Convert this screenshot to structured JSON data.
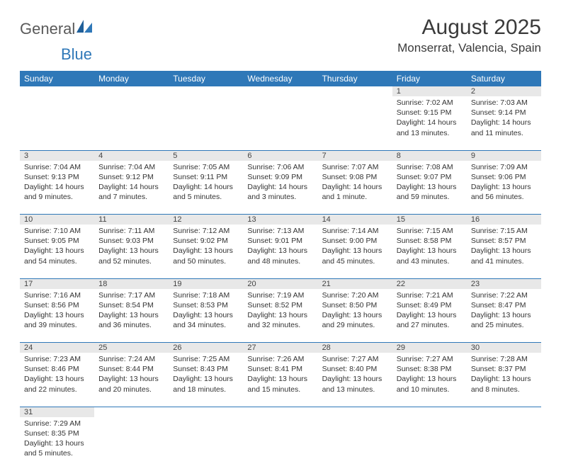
{
  "logo": {
    "part1": "General",
    "part2": "Blue"
  },
  "title": "August 2025",
  "location": "Monserrat, Valencia, Spain",
  "colors": {
    "header_bg": "#2f78b8",
    "header_text": "#ffffff",
    "daynum_bg": "#e8e8e8",
    "border": "#2f78b8"
  },
  "weekdays": [
    "Sunday",
    "Monday",
    "Tuesday",
    "Wednesday",
    "Thursday",
    "Friday",
    "Saturday"
  ],
  "weeks": [
    [
      null,
      null,
      null,
      null,
      null,
      {
        "n": "1",
        "sr": "Sunrise: 7:02 AM",
        "ss": "Sunset: 9:15 PM",
        "dl": "Daylight: 14 hours and 13 minutes."
      },
      {
        "n": "2",
        "sr": "Sunrise: 7:03 AM",
        "ss": "Sunset: 9:14 PM",
        "dl": "Daylight: 14 hours and 11 minutes."
      }
    ],
    [
      {
        "n": "3",
        "sr": "Sunrise: 7:04 AM",
        "ss": "Sunset: 9:13 PM",
        "dl": "Daylight: 14 hours and 9 minutes."
      },
      {
        "n": "4",
        "sr": "Sunrise: 7:04 AM",
        "ss": "Sunset: 9:12 PM",
        "dl": "Daylight: 14 hours and 7 minutes."
      },
      {
        "n": "5",
        "sr": "Sunrise: 7:05 AM",
        "ss": "Sunset: 9:11 PM",
        "dl": "Daylight: 14 hours and 5 minutes."
      },
      {
        "n": "6",
        "sr": "Sunrise: 7:06 AM",
        "ss": "Sunset: 9:09 PM",
        "dl": "Daylight: 14 hours and 3 minutes."
      },
      {
        "n": "7",
        "sr": "Sunrise: 7:07 AM",
        "ss": "Sunset: 9:08 PM",
        "dl": "Daylight: 14 hours and 1 minute."
      },
      {
        "n": "8",
        "sr": "Sunrise: 7:08 AM",
        "ss": "Sunset: 9:07 PM",
        "dl": "Daylight: 13 hours and 59 minutes."
      },
      {
        "n": "9",
        "sr": "Sunrise: 7:09 AM",
        "ss": "Sunset: 9:06 PM",
        "dl": "Daylight: 13 hours and 56 minutes."
      }
    ],
    [
      {
        "n": "10",
        "sr": "Sunrise: 7:10 AM",
        "ss": "Sunset: 9:05 PM",
        "dl": "Daylight: 13 hours and 54 minutes."
      },
      {
        "n": "11",
        "sr": "Sunrise: 7:11 AM",
        "ss": "Sunset: 9:03 PM",
        "dl": "Daylight: 13 hours and 52 minutes."
      },
      {
        "n": "12",
        "sr": "Sunrise: 7:12 AM",
        "ss": "Sunset: 9:02 PM",
        "dl": "Daylight: 13 hours and 50 minutes."
      },
      {
        "n": "13",
        "sr": "Sunrise: 7:13 AM",
        "ss": "Sunset: 9:01 PM",
        "dl": "Daylight: 13 hours and 48 minutes."
      },
      {
        "n": "14",
        "sr": "Sunrise: 7:14 AM",
        "ss": "Sunset: 9:00 PM",
        "dl": "Daylight: 13 hours and 45 minutes."
      },
      {
        "n": "15",
        "sr": "Sunrise: 7:15 AM",
        "ss": "Sunset: 8:58 PM",
        "dl": "Daylight: 13 hours and 43 minutes."
      },
      {
        "n": "16",
        "sr": "Sunrise: 7:15 AM",
        "ss": "Sunset: 8:57 PM",
        "dl": "Daylight: 13 hours and 41 minutes."
      }
    ],
    [
      {
        "n": "17",
        "sr": "Sunrise: 7:16 AM",
        "ss": "Sunset: 8:56 PM",
        "dl": "Daylight: 13 hours and 39 minutes."
      },
      {
        "n": "18",
        "sr": "Sunrise: 7:17 AM",
        "ss": "Sunset: 8:54 PM",
        "dl": "Daylight: 13 hours and 36 minutes."
      },
      {
        "n": "19",
        "sr": "Sunrise: 7:18 AM",
        "ss": "Sunset: 8:53 PM",
        "dl": "Daylight: 13 hours and 34 minutes."
      },
      {
        "n": "20",
        "sr": "Sunrise: 7:19 AM",
        "ss": "Sunset: 8:52 PM",
        "dl": "Daylight: 13 hours and 32 minutes."
      },
      {
        "n": "21",
        "sr": "Sunrise: 7:20 AM",
        "ss": "Sunset: 8:50 PM",
        "dl": "Daylight: 13 hours and 29 minutes."
      },
      {
        "n": "22",
        "sr": "Sunrise: 7:21 AM",
        "ss": "Sunset: 8:49 PM",
        "dl": "Daylight: 13 hours and 27 minutes."
      },
      {
        "n": "23",
        "sr": "Sunrise: 7:22 AM",
        "ss": "Sunset: 8:47 PM",
        "dl": "Daylight: 13 hours and 25 minutes."
      }
    ],
    [
      {
        "n": "24",
        "sr": "Sunrise: 7:23 AM",
        "ss": "Sunset: 8:46 PM",
        "dl": "Daylight: 13 hours and 22 minutes."
      },
      {
        "n": "25",
        "sr": "Sunrise: 7:24 AM",
        "ss": "Sunset: 8:44 PM",
        "dl": "Daylight: 13 hours and 20 minutes."
      },
      {
        "n": "26",
        "sr": "Sunrise: 7:25 AM",
        "ss": "Sunset: 8:43 PM",
        "dl": "Daylight: 13 hours and 18 minutes."
      },
      {
        "n": "27",
        "sr": "Sunrise: 7:26 AM",
        "ss": "Sunset: 8:41 PM",
        "dl": "Daylight: 13 hours and 15 minutes."
      },
      {
        "n": "28",
        "sr": "Sunrise: 7:27 AM",
        "ss": "Sunset: 8:40 PM",
        "dl": "Daylight: 13 hours and 13 minutes."
      },
      {
        "n": "29",
        "sr": "Sunrise: 7:27 AM",
        "ss": "Sunset: 8:38 PM",
        "dl": "Daylight: 13 hours and 10 minutes."
      },
      {
        "n": "30",
        "sr": "Sunrise: 7:28 AM",
        "ss": "Sunset: 8:37 PM",
        "dl": "Daylight: 13 hours and 8 minutes."
      }
    ],
    [
      {
        "n": "31",
        "sr": "Sunrise: 7:29 AM",
        "ss": "Sunset: 8:35 PM",
        "dl": "Daylight: 13 hours and 5 minutes."
      },
      null,
      null,
      null,
      null,
      null,
      null
    ]
  ]
}
